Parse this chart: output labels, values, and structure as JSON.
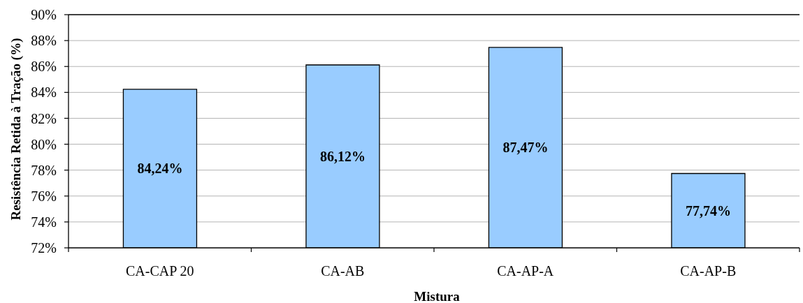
{
  "chart_data": {
    "type": "bar",
    "xlabel": "Mistura",
    "ylabel": "Resistência Retida à Tração (%)",
    "categories": [
      "CA-CAP 20",
      "CA-AB",
      "CA-AP-A",
      "CA-AP-B"
    ],
    "values": [
      84.24,
      86.12,
      87.47,
      77.74
    ],
    "value_labels": [
      "84,24%",
      "86,12%",
      "87,47%",
      "77,74%"
    ],
    "color": "#99ccff",
    "ylim": [
      72,
      90
    ],
    "yticks": [
      {
        "value": 72,
        "label": "72%"
      },
      {
        "value": 74,
        "label": "74%"
      },
      {
        "value": 76,
        "label": "76%"
      },
      {
        "value": 78,
        "label": "78%"
      },
      {
        "value": 80,
        "label": "80%"
      },
      {
        "value": 82,
        "label": "82%"
      },
      {
        "value": 84,
        "label": "84%"
      },
      {
        "value": 86,
        "label": "86%"
      },
      {
        "value": 88,
        "label": "88%"
      },
      {
        "value": 90,
        "label": "90%"
      }
    ],
    "grid": "y"
  }
}
